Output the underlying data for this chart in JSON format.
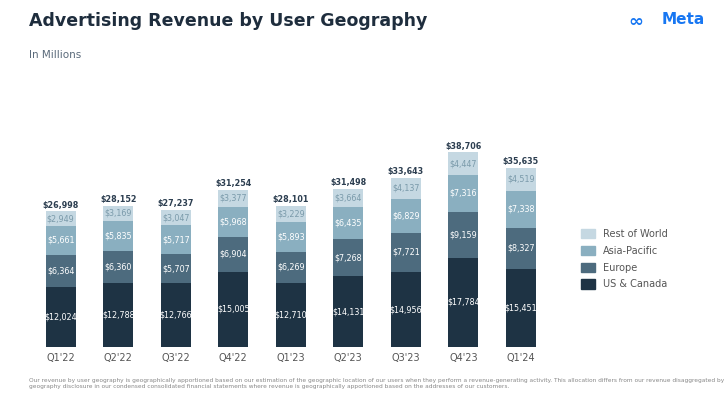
{
  "title": "Advertising Revenue by User Geography",
  "subtitle": "In Millions",
  "footnote": "Our revenue by user geography is geographically apportioned based on our estimation of the geographic location of our users when they perform a revenue-generating activity. This allocation differs from our revenue disaggregated by geography disclosure in our condensed consolidated financial statements where revenue is geographically apportioned based on the addresses of our customers.",
  "quarters": [
    "Q1'22",
    "Q2'22",
    "Q3'22",
    "Q4'22",
    "Q1'23",
    "Q2'23",
    "Q3'23",
    "Q4'23",
    "Q1'24"
  ],
  "us_canada": [
    12024,
    12788,
    12766,
    15005,
    12710,
    14131,
    14956,
    17784,
    15451
  ],
  "europe": [
    6364,
    6360,
    5707,
    6904,
    6269,
    7268,
    7721,
    9159,
    8327
  ],
  "asia_pacific": [
    5661,
    5835,
    5717,
    5968,
    5893,
    6435,
    6829,
    7316,
    7338
  ],
  "rest_of_world": [
    2949,
    3169,
    3047,
    3377,
    3229,
    3664,
    4137,
    4447,
    4519
  ],
  "totals": [
    26998,
    28152,
    27237,
    31254,
    28101,
    31498,
    33643,
    38706,
    35635
  ],
  "colors": {
    "us_canada": "#1e3344",
    "europe": "#4d6b7e",
    "asia_pacific": "#8aafc0",
    "rest_of_world": "#c5d8e2"
  },
  "label_color_dark": "#ffffff",
  "label_color_light": "#7a9aaa",
  "total_label_color": "#2c3e50",
  "background_color": "#ffffff",
  "title_color": "#1e2d3d",
  "subtitle_color": "#5a6a7a",
  "bar_width": 0.52,
  "ylim": 46000
}
